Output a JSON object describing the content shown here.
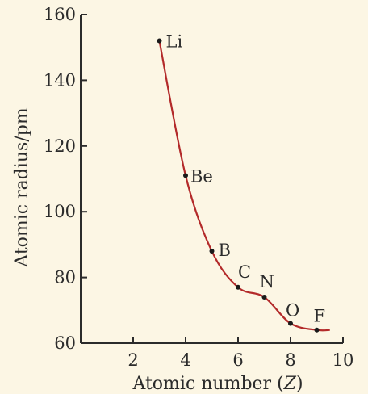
{
  "chart_data": {
    "type": "line",
    "xlabel": "Atomic number (Z)",
    "ylabel": "Atomic radius/pm",
    "xlim": [
      0,
      10
    ],
    "ylim": [
      60,
      160
    ],
    "xticks": [
      2,
      4,
      6,
      8,
      10
    ],
    "yticks": [
      60,
      80,
      100,
      120,
      140,
      160
    ],
    "grid": false,
    "line_color": "#b32a2a",
    "points": [
      {
        "x": 3,
        "y": 152,
        "label": "Li"
      },
      {
        "x": 4,
        "y": 111,
        "label": "Be"
      },
      {
        "x": 5,
        "y": 88,
        "label": "B"
      },
      {
        "x": 6,
        "y": 77,
        "label": "C"
      },
      {
        "x": 7,
        "y": 74,
        "label": "N"
      },
      {
        "x": 8,
        "y": 66,
        "label": "O"
      },
      {
        "x": 9,
        "y": 64,
        "label": "F"
      }
    ],
    "curve_end": {
      "x": 9.5,
      "y": 64
    }
  }
}
